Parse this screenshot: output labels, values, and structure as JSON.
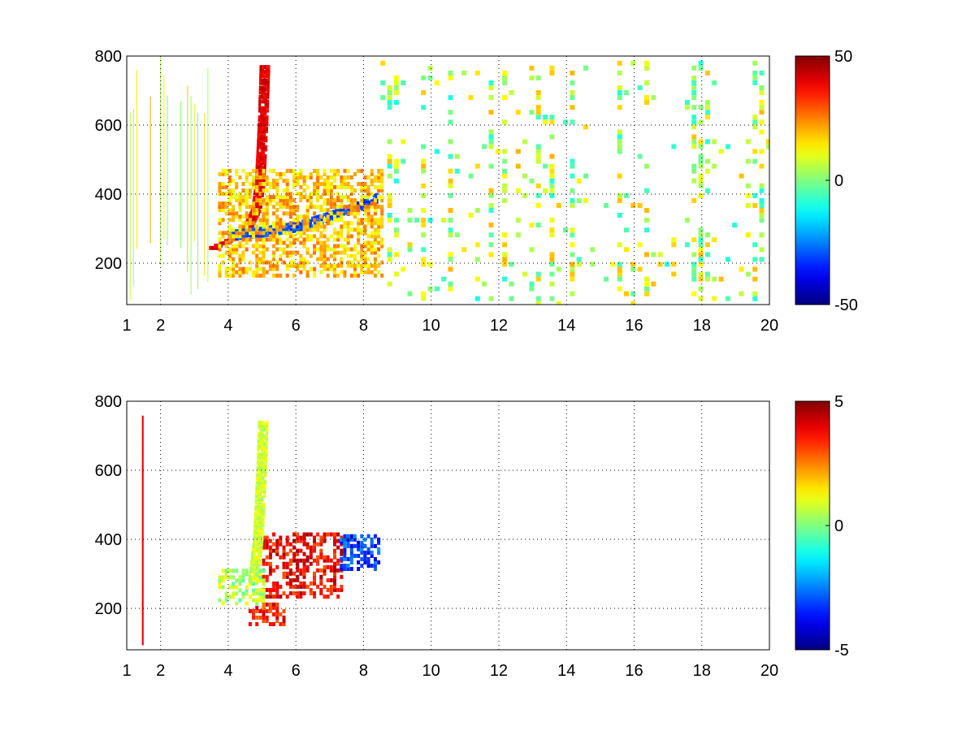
{
  "chart_data": [
    {
      "type": "heatmap",
      "title": "",
      "xlabel": "",
      "ylabel": "",
      "xlim": [
        1,
        20
      ],
      "ylim": [
        80,
        800
      ],
      "x_ticks": [
        1,
        2,
        4,
        6,
        8,
        10,
        12,
        14,
        16,
        18,
        20
      ],
      "y_ticks": [
        200,
        400,
        600,
        800
      ],
      "grid": true,
      "colormap": "jet",
      "colorbar": {
        "range": [
          -50,
          50
        ],
        "ticks": [
          -50,
          0,
          50
        ],
        "position": "right"
      },
      "features": [
        {
          "kind": "curve",
          "points": [
            [
              3.55,
              250
            ],
            [
              4.0,
              270
            ],
            [
              4.5,
              300
            ],
            [
              4.8,
              360
            ],
            [
              4.9,
              430
            ],
            [
              4.95,
              520
            ],
            [
              5.0,
              620
            ],
            [
              5.05,
              780
            ]
          ],
          "value": 40
        },
        {
          "kind": "curve",
          "points": [
            [
              4.0,
              285
            ],
            [
              5.0,
              295
            ],
            [
              6.0,
              310
            ],
            [
              7.0,
              340
            ],
            [
              8.0,
              375
            ],
            [
              8.4,
              395
            ]
          ],
          "value": -30
        },
        {
          "kind": "blob",
          "x": [
            3.7,
            8.5
          ],
          "y": [
            170,
            480
          ],
          "value": 18
        },
        {
          "kind": "scatter",
          "x": [
            8.5,
            20
          ],
          "y": [
            90,
            800
          ],
          "value": 5
        }
      ]
    },
    {
      "type": "heatmap",
      "title": "",
      "xlabel": "",
      "ylabel": "",
      "xlim": [
        1,
        20
      ],
      "ylim": [
        80,
        800
      ],
      "x_ticks": [
        1,
        2,
        4,
        6,
        8,
        10,
        12,
        14,
        16,
        18,
        20
      ],
      "y_ticks": [
        200,
        400,
        600,
        800
      ],
      "grid": true,
      "colormap": "jet",
      "colorbar": {
        "range": [
          -5,
          5
        ],
        "ticks": [
          -5,
          0,
          5
        ],
        "position": "right"
      },
      "features": [
        {
          "kind": "blob",
          "x": [
            5.0,
            7.3
          ],
          "y": [
            240,
            420
          ],
          "value": 3.8
        },
        {
          "kind": "blob",
          "x": [
            7.3,
            8.4
          ],
          "y": [
            320,
            420
          ],
          "value": -3.2
        },
        {
          "kind": "curve",
          "points": [
            [
              4.7,
              280
            ],
            [
              4.85,
              400
            ],
            [
              4.95,
              600
            ],
            [
              5.0,
              750
            ]
          ],
          "value": 0.8
        },
        {
          "kind": "blob",
          "x": [
            3.7,
            5.0
          ],
          "y": [
            220,
            320
          ],
          "value": 0.5
        },
        {
          "kind": "blob",
          "x": [
            4.6,
            5.6
          ],
          "y": [
            160,
            220
          ],
          "value": 3.5
        },
        {
          "kind": "line",
          "x": 1.45,
          "y": [
            100,
            760
          ],
          "value": 4
        }
      ]
    }
  ]
}
